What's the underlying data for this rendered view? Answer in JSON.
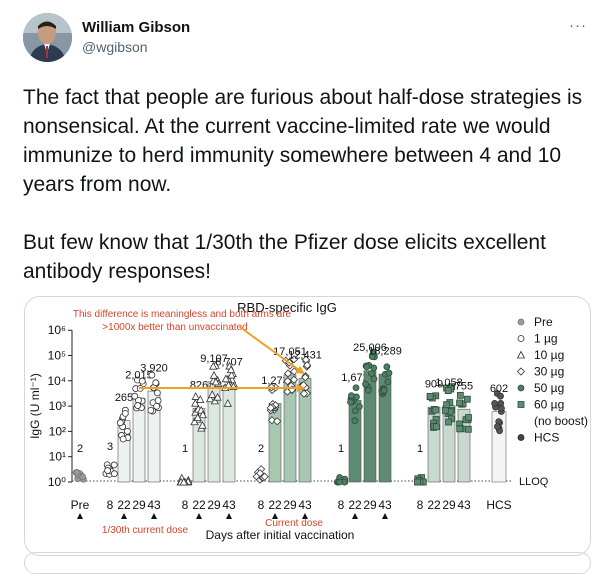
{
  "author": {
    "name": "William Gibson",
    "handle": "@wgibson"
  },
  "more_icon": "more-horizontal-icon",
  "tweet": {
    "text": "The fact that people are furious about half-dose strategies is nonsensical. At the current vaccine-limited rate we would immunize to herd immunity somewhere between 4 and 10 years from now.\n\nBut few know that 1/30th the Pfizer dose elicits excellent antibody responses!"
  },
  "chart_data": {
    "type": "scatter",
    "title": "RBD-specific IgG",
    "annotation_red": "This difference is meaningless and both arms are >1000x better than unvaccinated",
    "ylabel": "IgG (U ml⁻¹)",
    "xlabel": "Days after initial vaccination",
    "yscale": "log",
    "yticks": [
      "10⁰",
      "10¹",
      "10²",
      "10³",
      "10⁴",
      "10⁵",
      "10⁶"
    ],
    "lloq_label": "LLOQ",
    "groups": [
      {
        "name": "Pre",
        "x_labels": [
          "Pre"
        ],
        "values": [
          2
        ]
      },
      {
        "name": "1 µg",
        "x_labels": [
          "8",
          "22",
          "29",
          "43"
        ],
        "values": [
          3,
          265,
          2015,
          3920
        ]
      },
      {
        "name": "10 µg",
        "x_labels": [
          "8",
          "22",
          "29",
          "43"
        ],
        "values": [
          1,
          826,
          9107,
          6707
        ]
      },
      {
        "name": "30 µg",
        "x_labels": [
          "8",
          "22",
          "29",
          "43"
        ],
        "values": [
          2,
          1273,
          17051,
          12431
        ]
      },
      {
        "name": "50 µg",
        "x_labels": [
          "8",
          "22",
          "29",
          "43"
        ],
        "values": [
          1,
          1672,
          25006,
          18289
        ]
      },
      {
        "name": "60 µg (no boost)",
        "x_labels": [
          "8",
          "22",
          "29",
          "43"
        ],
        "values": [
          1,
          909,
          1058,
          755
        ]
      },
      {
        "name": "HCS",
        "x_labels": [
          "HCS"
        ],
        "values": [
          602
        ]
      }
    ],
    "value_labels": [
      "2",
      "3",
      "265",
      "2,015",
      "3,920",
      "1",
      "826",
      "9,107",
      "6,707",
      "2",
      "1,273",
      "17,051",
      "12,431",
      "1",
      "1,672",
      "25,006",
      "18,289",
      "1",
      "909",
      "1,058",
      "755",
      "602"
    ],
    "legend": [
      {
        "label": "Pre",
        "marker": "circle-gray"
      },
      {
        "label": "1 µg",
        "marker": "circle-open"
      },
      {
        "label": "10 µg",
        "marker": "triangle-open"
      },
      {
        "label": "30 µg",
        "marker": "diamond-open"
      },
      {
        "label": "50 µg",
        "marker": "circle-green"
      },
      {
        "label": "60 µg",
        "marker": "square-green"
      },
      {
        "label": "(no boost)",
        "marker": "none"
      },
      {
        "label": "HCS",
        "marker": "circle-dark"
      }
    ],
    "bottom_label_left": "1/30th current dose",
    "bottom_label_mid": "Current dose",
    "legend_placement": "right"
  }
}
